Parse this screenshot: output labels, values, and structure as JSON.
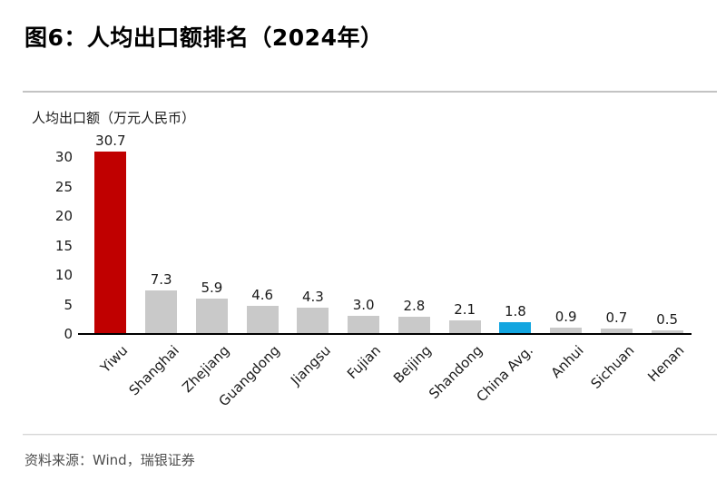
{
  "figure": {
    "title": "图6：人均出口额排名（2024年）",
    "source": "资料来源：Wind，瑞银证券"
  },
  "chart_data": {
    "type": "bar",
    "title": "图6：人均出口额排名（2024年）",
    "ylabel": "人均出口额（万元人民币）",
    "xlabel": "",
    "categories": [
      "Yiwu",
      "Shanghai",
      "Zhejiang",
      "Guangdong",
      "Jiangsu",
      "Fujian",
      "Beijing",
      "Shandong",
      "China Avg.",
      "Anhui",
      "Sichuan",
      "Henan"
    ],
    "values": [
      30.7,
      7.3,
      5.9,
      4.6,
      4.3,
      3.0,
      2.8,
      2.1,
      1.8,
      0.9,
      0.7,
      0.5
    ],
    "value_labels": [
      "30.7",
      "7.3",
      "5.9",
      "4.6",
      "4.3",
      "3.0",
      "2.8",
      "2.1",
      "1.8",
      "0.9",
      "0.7",
      "0.5"
    ],
    "yticks": [
      0,
      5,
      10,
      15,
      20,
      25,
      30
    ],
    "ylim": [
      0,
      32
    ],
    "grid": false,
    "legend": "none",
    "bar_colors": [
      "#C00000",
      "#C9C9C9",
      "#C9C9C9",
      "#C9C9C9",
      "#C9C9C9",
      "#C9C9C9",
      "#C9C9C9",
      "#C9C9C9",
      "#12A5E0",
      "#C9C9C9",
      "#C9C9C9",
      "#C9C9C9"
    ],
    "default_bar_color": "#C9C9C9",
    "highlight": {
      "Yiwu": "#C00000",
      "China Avg.": "#12A5E0"
    }
  },
  "colors": {
    "accent_red": "#C00000",
    "accent_blue": "#12A5E0",
    "bar_gray": "#C9C9C9",
    "axis_black": "#000000",
    "rule_gray": "#C3C3C3",
    "source_text": "#4D4D4D"
  }
}
